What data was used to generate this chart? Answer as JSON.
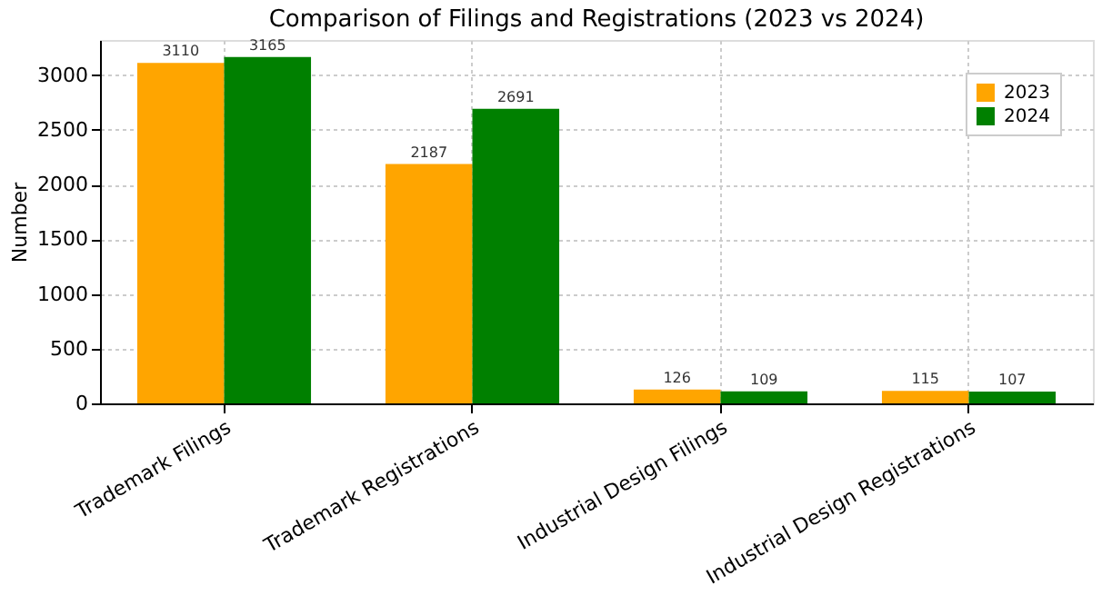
{
  "chart_data": {
    "type": "bar",
    "title": "Comparison of Filings and Registrations (2023 vs 2024)",
    "ylabel": "Number",
    "categories": [
      "Trademark Filings",
      "Trademark Registrations",
      "Industrial Design Filings",
      "Industrial Design Registrations"
    ],
    "series": [
      {
        "name": "2023",
        "color": "#ffa500",
        "values": [
          3110,
          2187,
          126,
          115
        ]
      },
      {
        "name": "2024",
        "color": "#008000",
        "values": [
          3165,
          2691,
          109,
          107
        ]
      }
    ],
    "ylim": [
      0,
      3320
    ],
    "yticks": [
      0,
      500,
      1000,
      1500,
      2000,
      2500,
      3000
    ],
    "grid": true,
    "legend": "top right",
    "data_labels": true
  }
}
